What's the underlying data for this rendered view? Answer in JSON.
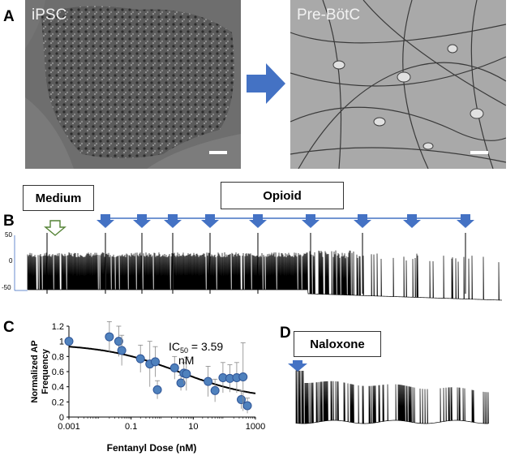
{
  "panels": {
    "A": {
      "letter": "A",
      "left_label": "iPSC",
      "right_label": "Pre-BötC"
    },
    "B": {
      "letter": "B",
      "medium_label": "Medium",
      "opioid_label": "Opioid",
      "trace_ticks": [
        "50",
        "0",
        "-50"
      ]
    },
    "C": {
      "letter": "C",
      "ic50_prefix": "IC",
      "ic50_sub": "50",
      "ic50_value": " = 3.59",
      "ic50_unit": "nM"
    },
    "D": {
      "letter": "D",
      "naloxone_label": "Naloxone"
    }
  },
  "colors": {
    "arrow_blue": "#4472c4",
    "marker_blue": "#4f81bd",
    "medium_arrow_green": "#548235"
  },
  "chart_data": {
    "type": "scatter",
    "xlabel": "Fentanyl Dose (nM)",
    "ylabel": "Normalized AP Frequency",
    "xscale": "log",
    "xlim": [
      0.001,
      1000
    ],
    "ylim": [
      0,
      1.2
    ],
    "xticks": [
      "0.001",
      "0.1",
      "10",
      "1000"
    ],
    "yticks": [
      "0",
      "0.2",
      "0.4",
      "0.6",
      "0.8",
      "1",
      "1.2"
    ],
    "points": [
      {
        "x": 0.001,
        "y": 1.0,
        "err": 0.0
      },
      {
        "x": 0.02,
        "y": 1.06,
        "err": 0.2
      },
      {
        "x": 0.04,
        "y": 1.0,
        "err": 0.2
      },
      {
        "x": 0.05,
        "y": 0.88,
        "err": 0.2
      },
      {
        "x": 0.2,
        "y": 0.77,
        "err": 0.18
      },
      {
        "x": 0.4,
        "y": 0.7,
        "err": 0.3
      },
      {
        "x": 0.6,
        "y": 0.73,
        "err": 0.2
      },
      {
        "x": 0.7,
        "y": 0.36,
        "err": 0.12
      },
      {
        "x": 2.5,
        "y": 0.65,
        "err": 0.15
      },
      {
        "x": 4,
        "y": 0.45,
        "err": 0.1
      },
      {
        "x": 5,
        "y": 0.58,
        "err": 0.14
      },
      {
        "x": 6,
        "y": 0.57,
        "err": 0.22
      },
      {
        "x": 30,
        "y": 0.47,
        "err": 0.2
      },
      {
        "x": 50,
        "y": 0.35,
        "err": 0.15
      },
      {
        "x": 90,
        "y": 0.52,
        "err": 0.2
      },
      {
        "x": 150,
        "y": 0.51,
        "err": 0.18
      },
      {
        "x": 250,
        "y": 0.52,
        "err": 0.2
      },
      {
        "x": 350,
        "y": 0.23,
        "err": 0.12
      },
      {
        "x": 400,
        "y": 0.53,
        "err": 0.45
      },
      {
        "x": 550,
        "y": 0.15,
        "err": 0.1
      }
    ],
    "fit": {
      "type": "hill",
      "ic50": 3.59,
      "top": 0.97,
      "bottom": 0.22,
      "hill": 0.35
    }
  }
}
